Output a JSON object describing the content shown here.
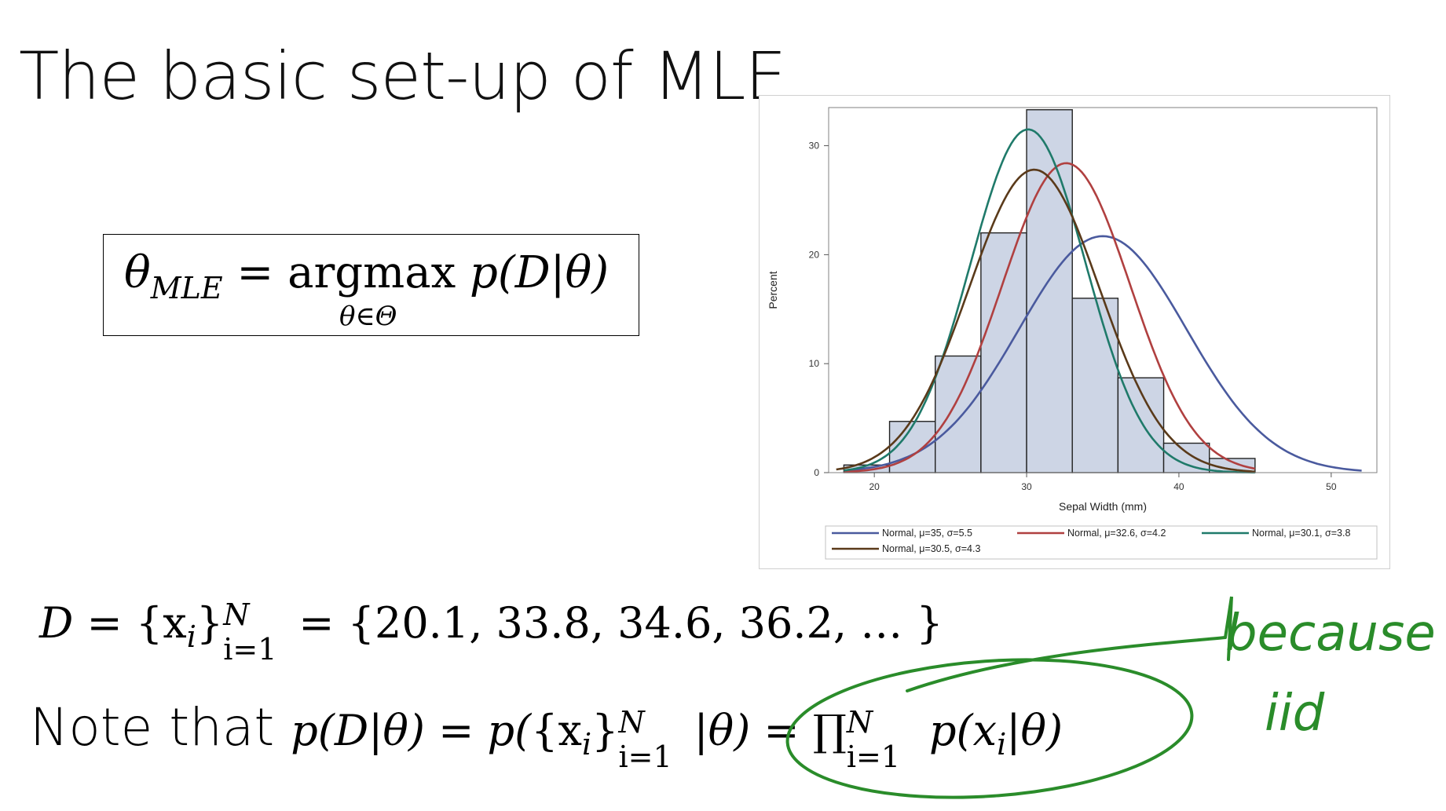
{
  "slide": {
    "title": "The basic set-up of MLE"
  },
  "mle_box": {
    "lhs": "θ",
    "lhs_sub": "MLE",
    "eq": " = ",
    "op": "argmax",
    "under": "θ∈Θ",
    "rhs": "p(D|θ)"
  },
  "dataset_eq": {
    "lhs": "D",
    "set_open": " = {x",
    "set_sub": "i",
    "set_close": "}",
    "sup": "N",
    "sub": "i=1",
    "values": "= {20.1, 33.8, 34.6, 36.2, … }"
  },
  "note_eq": {
    "lead": "Note that ",
    "p1": "p(D|θ) = p(",
    "set_open": "{x",
    "set_sub": "i",
    "set_close": "}",
    "sup": "N",
    "sub": "i=1",
    "bar_theta": "|θ)",
    "eq2": " = ∏",
    "prod_sup": "N",
    "prod_sub": "i=1",
    "term": " p(x",
    "term_sub": "i",
    "term_close": "|θ)"
  },
  "annotation": {
    "line1": "because",
    "line2": "iid",
    "ink_color": "#2a8c2a"
  },
  "chart_data": {
    "type": "bar",
    "xlabel": "Sepal Width (mm)",
    "ylabel": "Percent",
    "xlim": [
      17,
      53
    ],
    "ylim": [
      0,
      33.5
    ],
    "xticks": [
      20,
      30,
      40,
      50
    ],
    "yticks": [
      0,
      10,
      20,
      30
    ],
    "bins": [
      {
        "x0": 18,
        "x1": 21,
        "value": 0.7
      },
      {
        "x0": 21,
        "x1": 24,
        "value": 4.7
      },
      {
        "x0": 24,
        "x1": 27,
        "value": 10.7
      },
      {
        "x0": 27,
        "x1": 30,
        "value": 22
      },
      {
        "x0": 30,
        "x1": 33,
        "value": 33.3
      },
      {
        "x0": 33,
        "x1": 36,
        "value": 16
      },
      {
        "x0": 36,
        "x1": 39,
        "value": 8.7
      },
      {
        "x0": 39,
        "x1": 42,
        "value": 2.7
      },
      {
        "x0": 42,
        "x1": 45,
        "value": 1.3
      }
    ],
    "bar_color": "#cdd5e5",
    "curves": [
      {
        "name": "Normal, μ=35, σ=5.5",
        "mu": 35,
        "sigma": 5.5,
        "color": "#4a5a9e",
        "xrange": [
          18,
          52
        ]
      },
      {
        "name": "Normal, μ=32.6, σ=4.2",
        "mu": 32.6,
        "sigma": 4.2,
        "color": "#b04040",
        "xrange": [
          18,
          45
        ]
      },
      {
        "name": "Normal, μ=30.1, σ=3.8",
        "mu": 30.1,
        "sigma": 3.8,
        "color": "#1f7a6a",
        "xrange": [
          18,
          45
        ]
      },
      {
        "name": "Normal, μ=30.5, σ=4.3",
        "mu": 30.5,
        "sigma": 4.3,
        "color": "#5a3a1a",
        "xrange": [
          17.5,
          45
        ]
      }
    ],
    "legend_position": "bottom",
    "grid": false
  }
}
